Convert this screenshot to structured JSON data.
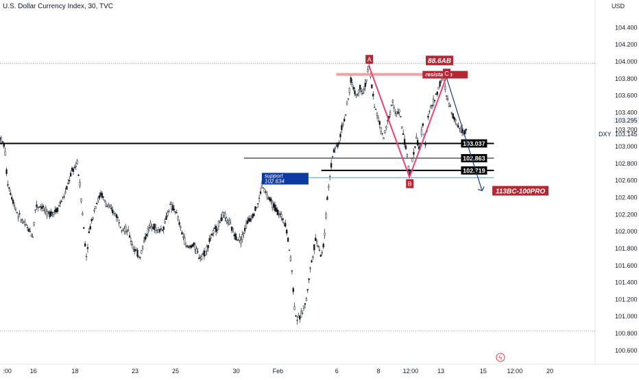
{
  "chart_data": {
    "type": "candlestick",
    "title": "U.S. Dollar Currency Index, 30, TVC",
    "currency": "USD",
    "symbol": "DXY",
    "last_price": "103.295",
    "last_price_secondary": "103.145",
    "y_axis": {
      "min": 100.5,
      "max": 104.6,
      "ticks": [
        "100.600",
        "100.800",
        "101.000",
        "101.200",
        "101.400",
        "101.600",
        "101.800",
        "102.000",
        "102.200",
        "102.400",
        "102.600",
        "102.800",
        "103.000",
        "103.200",
        "103.400",
        "103.600",
        "103.800",
        "104.000",
        "104.200",
        "104.400"
      ]
    },
    "x_axis": {
      "labels": [
        {
          "text": ":00",
          "pos": 0.005
        },
        {
          "text": "16",
          "pos": 0.056
        },
        {
          "text": "18",
          "pos": 0.126
        },
        {
          "text": "23",
          "pos": 0.227
        },
        {
          "text": "25",
          "pos": 0.295
        },
        {
          "text": "30",
          "pos": 0.397
        },
        {
          "text": "Feb",
          "pos": 0.467
        },
        {
          "text": "6",
          "pos": 0.566
        },
        {
          "text": "8",
          "pos": 0.636
        },
        {
          "text": "12:00",
          "pos": 0.69
        },
        {
          "text": "13",
          "pos": 0.741
        },
        {
          "text": "15",
          "pos": 0.812
        },
        {
          "text": "12:00",
          "pos": 0.865
        },
        {
          "text": "20",
          "pos": 0.924
        }
      ]
    },
    "price_path": [
      [
        0.0,
        103.1
      ],
      [
        0.008,
        103.0
      ],
      [
        0.012,
        102.6
      ],
      [
        0.02,
        102.4
      ],
      [
        0.03,
        102.2
      ],
      [
        0.045,
        102.05
      ],
      [
        0.055,
        101.95
      ],
      [
        0.06,
        102.3
      ],
      [
        0.07,
        102.3
      ],
      [
        0.08,
        102.2
      ],
      [
        0.095,
        102.25
      ],
      [
        0.11,
        102.45
      ],
      [
        0.12,
        102.7
      ],
      [
        0.13,
        102.8
      ],
      [
        0.135,
        102.5
      ],
      [
        0.14,
        102.1
      ],
      [
        0.145,
        101.7
      ],
      [
        0.15,
        102.0
      ],
      [
        0.16,
        102.3
      ],
      [
        0.17,
        102.45
      ],
      [
        0.18,
        102.3
      ],
      [
        0.195,
        102.2
      ],
      [
        0.205,
        102.05
      ],
      [
        0.215,
        102.0
      ],
      [
        0.225,
        101.8
      ],
      [
        0.235,
        101.7
      ],
      [
        0.245,
        101.95
      ],
      [
        0.255,
        102.1
      ],
      [
        0.265,
        102.0
      ],
      [
        0.275,
        102.05
      ],
      [
        0.285,
        102.3
      ],
      [
        0.295,
        102.25
      ],
      [
        0.305,
        102.0
      ],
      [
        0.315,
        101.8
      ],
      [
        0.325,
        101.85
      ],
      [
        0.335,
        101.7
      ],
      [
        0.345,
        101.75
      ],
      [
        0.355,
        101.95
      ],
      [
        0.365,
        102.05
      ],
      [
        0.375,
        102.2
      ],
      [
        0.385,
        102.1
      ],
      [
        0.395,
        101.95
      ],
      [
        0.405,
        101.9
      ],
      [
        0.415,
        102.1
      ],
      [
        0.425,
        102.2
      ],
      [
        0.435,
        102.35
      ],
      [
        0.44,
        102.55
      ],
      [
        0.45,
        102.4
      ],
      [
        0.46,
        102.3
      ],
      [
        0.47,
        102.2
      ],
      [
        0.48,
        102.1
      ],
      [
        0.49,
        101.6
      ],
      [
        0.495,
        101.1
      ],
      [
        0.5,
        100.95
      ],
      [
        0.505,
        101.0
      ],
      [
        0.515,
        101.2
      ],
      [
        0.52,
        101.5
      ],
      [
        0.525,
        101.7
      ],
      [
        0.53,
        101.9
      ],
      [
        0.535,
        101.85
      ],
      [
        0.54,
        101.7
      ],
      [
        0.545,
        101.9
      ],
      [
        0.55,
        102.4
      ],
      [
        0.555,
        102.7
      ],
      [
        0.56,
        102.95
      ],
      [
        0.57,
        103.05
      ],
      [
        0.575,
        103.25
      ],
      [
        0.58,
        103.35
      ],
      [
        0.585,
        103.55
      ],
      [
        0.59,
        103.8
      ],
      [
        0.595,
        103.65
      ],
      [
        0.6,
        103.6
      ],
      [
        0.605,
        103.7
      ],
      [
        0.61,
        103.65
      ],
      [
        0.615,
        103.75
      ],
      [
        0.62,
        103.95
      ],
      [
        0.625,
        103.7
      ],
      [
        0.63,
        103.45
      ],
      [
        0.635,
        103.35
      ],
      [
        0.64,
        103.2
      ],
      [
        0.645,
        103.1
      ],
      [
        0.65,
        103.25
      ],
      [
        0.655,
        103.4
      ],
      [
        0.66,
        103.55
      ],
      [
        0.665,
        103.35
      ],
      [
        0.67,
        103.45
      ],
      [
        0.675,
        103.25
      ],
      [
        0.68,
        103.05
      ],
      [
        0.685,
        102.85
      ],
      [
        0.688,
        102.65
      ],
      [
        0.692,
        102.8
      ],
      [
        0.7,
        103.1
      ],
      [
        0.705,
        102.95
      ],
      [
        0.71,
        103.25
      ],
      [
        0.715,
        103.05
      ],
      [
        0.72,
        103.4
      ],
      [
        0.73,
        103.55
      ],
      [
        0.735,
        103.65
      ],
      [
        0.74,
        103.75
      ],
      [
        0.745,
        103.82
      ],
      [
        0.75,
        103.6
      ],
      [
        0.755,
        103.5
      ],
      [
        0.76,
        103.4
      ],
      [
        0.765,
        103.3
      ],
      [
        0.77,
        103.25
      ],
      [
        0.775,
        103.2
      ],
      [
        0.78,
        103.15
      ],
      [
        0.785,
        103.25
      ]
    ],
    "horizontal_lines": [
      {
        "value": 103.037,
        "label": "103.037",
        "x_start": 0.0,
        "x_end": 0.83,
        "weight": 2
      },
      {
        "value": 102.863,
        "label": "102.863",
        "x_start": 0.41,
        "x_end": 0.83,
        "weight": 1
      },
      {
        "value": 102.719,
        "label": "102.719",
        "x_start": 0.54,
        "x_end": 0.83,
        "weight": 2
      }
    ],
    "dotted_lines": [
      103.98,
      100.83
    ],
    "resistance": {
      "label": "resistance",
      "value": 103.85,
      "x_start": 0.565,
      "x_end": 0.71
    },
    "support": {
      "label": "support",
      "value_label": "102.634",
      "value": 102.634,
      "x_start": 0.44,
      "x_end": 0.83
    },
    "pattern": {
      "points": [
        {
          "label": "A",
          "x": 0.62,
          "y": 103.95
        },
        {
          "label": "B",
          "x": 0.688,
          "y": 102.64
        },
        {
          "label": "C",
          "x": 0.75,
          "y": 103.82
        }
      ],
      "ab_label": "88.6AB",
      "projection_label": "113BC-100PRO",
      "projection_target": {
        "x": 0.81,
        "y": 102.48
      }
    },
    "colors": {
      "candle": "#131722",
      "pattern_red": "#f23e6e",
      "label_red": "#b22833",
      "resistance_line": "#f3a0a6",
      "support_line": "#5ec6d8",
      "support_box": "#0d3aa1",
      "projection_line": "#1e3a78",
      "grid": "#ffffff"
    }
  }
}
